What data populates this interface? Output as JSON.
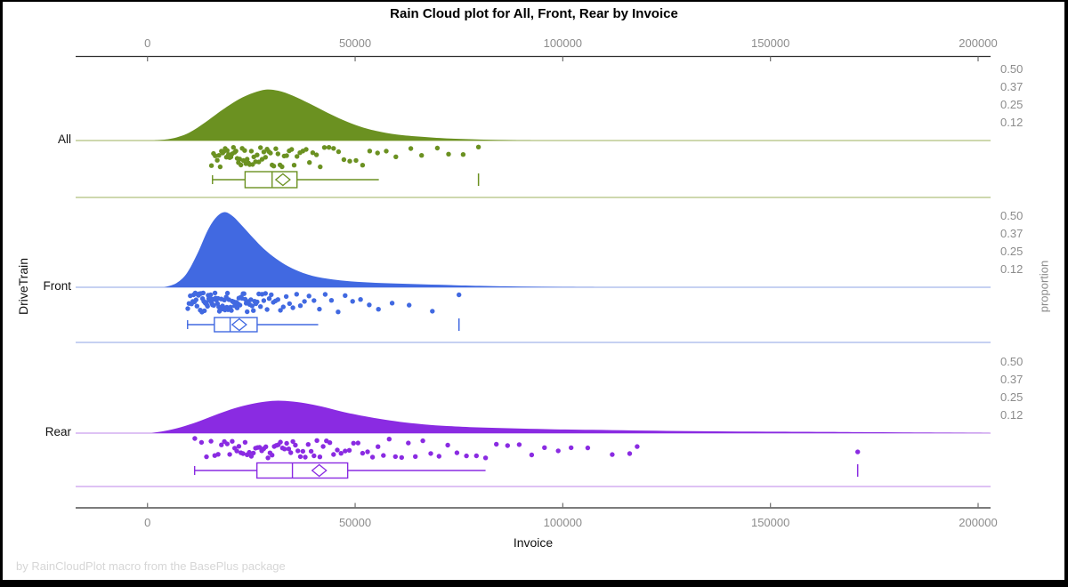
{
  "title": "Rain Cloud plot for All, Front, Rear by Invoice",
  "footer": "by RainCloudPlot macro from the BasePlus package",
  "axes": {
    "x": {
      "label": "Invoice",
      "tick_labels": [
        "0",
        "50000",
        "100000",
        "150000",
        "200000"
      ],
      "tick_values": [
        0,
        50000,
        100000,
        150000,
        200000
      ]
    },
    "y_left": {
      "label": "DriveTrain",
      "categories": [
        "All",
        "Front",
        "Rear"
      ]
    },
    "y_right": {
      "label": "proportion",
      "tick_labels": [
        "0.50",
        "0.37",
        "0.25",
        "0.12"
      ],
      "tick_values": [
        0.5,
        0.375,
        0.25,
        0.125
      ]
    }
  },
  "chart_data": {
    "type": "raincloud",
    "title": "Rain Cloud plot for All, Front, Rear by Invoice",
    "xlabel": "Invoice",
    "ylabel_left": "DriveTrain",
    "ylabel_right": "proportion",
    "xlim": [
      -17300,
      203000
    ],
    "proportion_scale_max": 0.5,
    "groups": [
      {
        "name": "All",
        "color": "#6B9121",
        "light_color": "#BDCB93",
        "density": {
          "x": [
            1500,
            6000,
            10000,
            14000,
            18000,
            22000,
            25500,
            28500,
            31500,
            35000,
            39000,
            43000,
            47000,
            51000,
            55000,
            60000,
            66000,
            72000,
            80000,
            88000,
            95000
          ],
          "proportion": [
            0,
            0.015,
            0.055,
            0.13,
            0.215,
            0.29,
            0.335,
            0.358,
            0.35,
            0.315,
            0.26,
            0.2,
            0.145,
            0.1,
            0.068,
            0.042,
            0.026,
            0.015,
            0.007,
            0.002,
            0
          ]
        },
        "box": {
          "whisker_low": 15650,
          "q1": 23500,
          "median": 30000,
          "q3": 36000,
          "whisker_high": 55700,
          "mean": 32600,
          "far_values": [
            79700
          ]
        },
        "points": [
          15400,
          15900,
          16300,
          16800,
          17200,
          17500,
          17800,
          18100,
          18400,
          18700,
          19000,
          19200,
          19500,
          19800,
          20100,
          20400,
          20700,
          21000,
          21300,
          21600,
          21900,
          22200,
          22500,
          22800,
          23100,
          23400,
          23700,
          24000,
          24300,
          24600,
          25000,
          25300,
          25600,
          26000,
          26400,
          26800,
          27200,
          27600,
          28000,
          28400,
          28800,
          29200,
          29600,
          30000,
          30400,
          30900,
          31400,
          31900,
          32400,
          32900,
          33500,
          34100,
          34700,
          35300,
          36000,
          36700,
          37400,
          38200,
          39000,
          39800,
          40700,
          41600,
          42600,
          43700,
          44800,
          46000,
          47300,
          48700,
          50200,
          51800,
          53500,
          55400,
          57500,
          59800,
          63400,
          66000,
          69800,
          72500,
          76000,
          79700
        ]
      },
      {
        "name": "Front",
        "color": "#4169E1",
        "light_color": "#B3C2EE",
        "density": {
          "x": [
            4000,
            7000,
            9500,
            12000,
            14500,
            16500,
            18500,
            20500,
            23000,
            25500,
            28000,
            31000,
            34000,
            37500,
            41000,
            46000,
            52000,
            58000,
            65000,
            72000,
            80000,
            90000,
            100000,
            110000
          ],
          "proportion": [
            0,
            0.03,
            0.1,
            0.235,
            0.4,
            0.49,
            0.528,
            0.5,
            0.425,
            0.345,
            0.27,
            0.2,
            0.145,
            0.1,
            0.072,
            0.05,
            0.036,
            0.028,
            0.022,
            0.016,
            0.01,
            0.005,
            0.002,
            0
          ]
        },
        "box": {
          "whisker_low": 9650,
          "q1": 16100,
          "median": 19900,
          "q3": 26400,
          "whisker_high": 41100,
          "mean": 22100,
          "far_values": [
            75000
          ]
        },
        "points": [
          9700,
          10000,
          10300,
          10600,
          10900,
          11100,
          11300,
          11500,
          11700,
          11900,
          12100,
          12300,
          12500,
          12700,
          12900,
          13100,
          13250,
          13400,
          13550,
          13700,
          13850,
          14000,
          14150,
          14300,
          14450,
          14600,
          14750,
          14900,
          15050,
          15200,
          15350,
          15500,
          15650,
          15800,
          15950,
          16100,
          16250,
          16400,
          16550,
          16700,
          16850,
          17000,
          17150,
          17300,
          17450,
          17600,
          17750,
          17900,
          18050,
          18200,
          18350,
          18500,
          18650,
          18800,
          18950,
          19100,
          19250,
          19400,
          19600,
          19800,
          20000,
          20200,
          20400,
          20600,
          20800,
          21000,
          21200,
          21400,
          21600,
          21800,
          22000,
          22250,
          22500,
          22750,
          23000,
          23250,
          23500,
          23750,
          24000,
          24300,
          24600,
          24900,
          25200,
          25500,
          25800,
          26100,
          26400,
          26800,
          27200,
          27600,
          28000,
          28400,
          28800,
          29300,
          29800,
          30300,
          30800,
          31400,
          32000,
          32700,
          33400,
          34200,
          35000,
          35900,
          36800,
          37800,
          38900,
          40100,
          41400,
          42800,
          44300,
          45900,
          47600,
          49400,
          51300,
          53400,
          55600,
          58900,
          63000,
          68600,
          75000
        ]
      },
      {
        "name": "Rear",
        "color": "#8A2BE2",
        "light_color": "#D3AEF0",
        "density": {
          "x": [
            1000,
            5000,
            9000,
            13000,
            17000,
            21000,
            25000,
            28500,
            31500,
            35000,
            39000,
            43000,
            47000,
            52000,
            57000,
            62000,
            68000,
            75000,
            82000,
            90000,
            98000,
            107000,
            117000,
            128000,
            140000,
            152000,
            163000,
            172000,
            182000,
            192000,
            200000,
            203000
          ],
          "proportion": [
            0,
            0.02,
            0.05,
            0.09,
            0.135,
            0.175,
            0.205,
            0.222,
            0.228,
            0.222,
            0.205,
            0.18,
            0.15,
            0.12,
            0.095,
            0.075,
            0.058,
            0.046,
            0.038,
            0.032,
            0.027,
            0.023,
            0.019,
            0.015,
            0.012,
            0.01,
            0.009,
            0.007,
            0.005,
            0.003,
            0.001,
            0
          ]
        },
        "box": {
          "whisker_low": 11350,
          "q1": 26350,
          "median": 34900,
          "q3": 48200,
          "whisker_high": 81400,
          "mean": 41350,
          "far_values": [
            171000
          ]
        },
        "points": [
          11400,
          13000,
          14200,
          15300,
          16200,
          17000,
          17800,
          18500,
          19200,
          19800,
          20400,
          21000,
          21500,
          22000,
          22500,
          23000,
          23500,
          24000,
          24500,
          25000,
          25500,
          26000,
          26500,
          27000,
          27500,
          28000,
          28500,
          29000,
          29500,
          30000,
          30500,
          31000,
          31500,
          32000,
          32500,
          33000,
          33500,
          34000,
          34500,
          35000,
          35600,
          36200,
          36800,
          37400,
          38000,
          38700,
          39400,
          40100,
          40800,
          41500,
          42300,
          43100,
          43900,
          44800,
          45700,
          46600,
          47600,
          48600,
          49600,
          50700,
          51800,
          53000,
          54200,
          55500,
          56800,
          58200,
          59700,
          61200,
          62800,
          64500,
          66300,
          68200,
          70200,
          72300,
          74500,
          76800,
          79200,
          81400,
          84000,
          86700,
          89500,
          92500,
          95600,
          98900,
          102000,
          106000,
          111900,
          116100,
          117900,
          171000
        ]
      }
    ]
  }
}
